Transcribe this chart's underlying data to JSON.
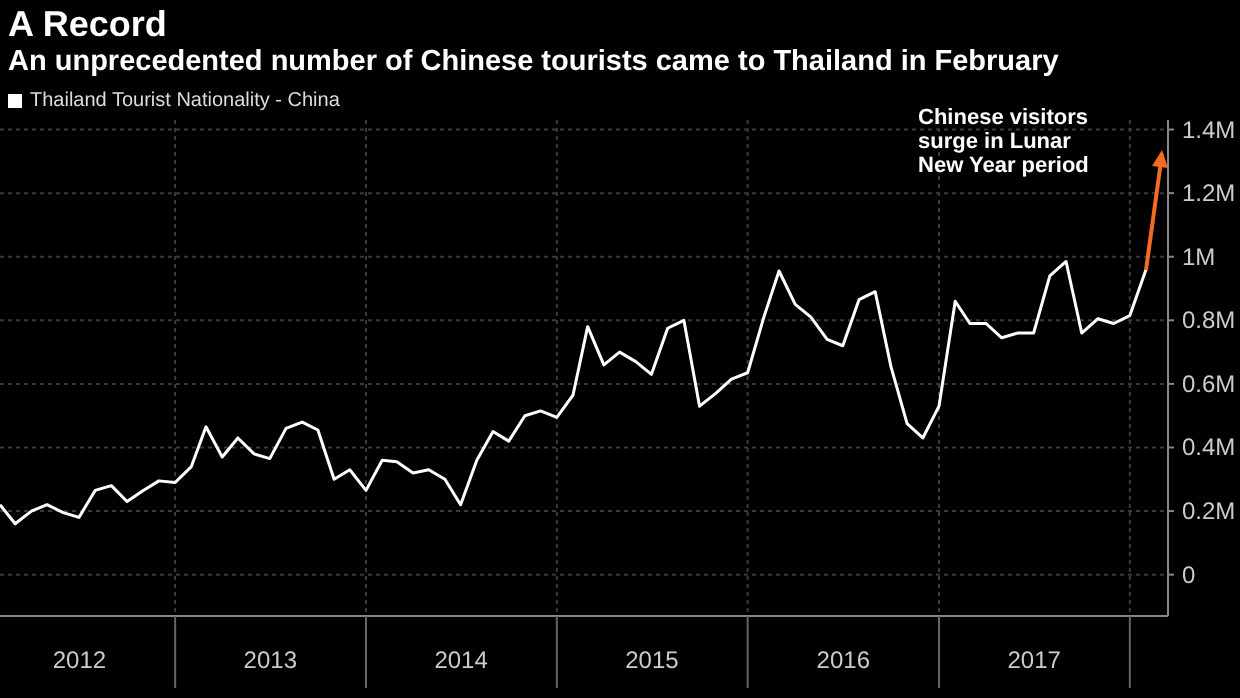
{
  "chart_data": {
    "type": "line",
    "title": "A Record",
    "subtitle": "An unprecedented number of Chinese tourists came to Thailand in February",
    "x": [
      "2012-02",
      "2012-03",
      "2012-04",
      "2012-05",
      "2012-06",
      "2012-07",
      "2012-08",
      "2012-09",
      "2012-10",
      "2012-11",
      "2012-12",
      "2013-01",
      "2013-02",
      "2013-03",
      "2013-04",
      "2013-05",
      "2013-06",
      "2013-07",
      "2013-08",
      "2013-09",
      "2013-10",
      "2013-11",
      "2013-12",
      "2014-01",
      "2014-02",
      "2014-03",
      "2014-04",
      "2014-05",
      "2014-06",
      "2014-07",
      "2014-08",
      "2014-09",
      "2014-10",
      "2014-11",
      "2014-12",
      "2015-01",
      "2015-02",
      "2015-03",
      "2015-04",
      "2015-05",
      "2015-06",
      "2015-07",
      "2015-08",
      "2015-09",
      "2015-10",
      "2015-11",
      "2015-12",
      "2016-01",
      "2016-02",
      "2016-03",
      "2016-04",
      "2016-05",
      "2016-06",
      "2016-07",
      "2016-08",
      "2016-09",
      "2016-10",
      "2016-11",
      "2016-12",
      "2017-01",
      "2017-02",
      "2017-03",
      "2017-04",
      "2017-05",
      "2017-06",
      "2017-07",
      "2017-08",
      "2017-09",
      "2017-10",
      "2017-11",
      "2017-12",
      "2018-01",
      "2018-02"
    ],
    "series": [
      {
        "name": "Thailand Tourist Nationality - China",
        "color": "#ffffff",
        "values": [
          0.22,
          0.16,
          0.2,
          0.22,
          0.195,
          0.18,
          0.265,
          0.28,
          0.23,
          0.265,
          0.295,
          0.29,
          0.34,
          0.465,
          0.37,
          0.43,
          0.38,
          0.365,
          0.46,
          0.48,
          0.455,
          0.3,
          0.33,
          0.265,
          0.36,
          0.355,
          0.32,
          0.33,
          0.3,
          0.22,
          0.36,
          0.45,
          0.42,
          0.5,
          0.515,
          0.495,
          0.565,
          0.78,
          0.66,
          0.7,
          0.67,
          0.63,
          0.775,
          0.8,
          0.53,
          0.57,
          0.615,
          0.635,
          0.81,
          0.955,
          0.85,
          0.81,
          0.74,
          0.72,
          0.865,
          0.89,
          0.655,
          0.475,
          0.43,
          0.53,
          0.86,
          0.79,
          0.79,
          0.745,
          0.76,
          0.76,
          0.94,
          0.985,
          0.76,
          0.805,
          0.79,
          0.815,
          0.96
        ]
      }
    ],
    "xlim": [
      "2012-02-01",
      "2018-03-15"
    ],
    "xticks": [
      {
        "value": "2013-01-01",
        "label": null
      },
      {
        "value": "2014-01-01",
        "label": null
      },
      {
        "value": "2015-01-01",
        "label": null
      },
      {
        "value": "2016-01-01",
        "label": null
      },
      {
        "value": "2017-01-01",
        "label": null
      },
      {
        "value": "2018-01-01",
        "label": null
      },
      {
        "value": "2012-07-02",
        "label": "2012"
      },
      {
        "value": "2013-07-02",
        "label": "2013"
      },
      {
        "value": "2014-07-02",
        "label": "2014"
      },
      {
        "value": "2015-07-02",
        "label": "2015"
      },
      {
        "value": "2016-07-02",
        "label": "2016"
      },
      {
        "value": "2017-07-02",
        "label": "2017"
      }
    ],
    "ylim": [
      -0.13,
      1.43
    ],
    "yticks": [
      {
        "value": 0,
        "label": "0"
      },
      {
        "value": 0.2,
        "label": "0.2M"
      },
      {
        "value": 0.4,
        "label": "0.4M"
      },
      {
        "value": 0.6,
        "label": "0.6M"
      },
      {
        "value": 0.8,
        "label": "0.8M"
      },
      {
        "value": 1,
        "label": "1M"
      },
      {
        "value": 1.2,
        "label": "1.2M"
      },
      {
        "value": 1.4,
        "label": "1.4M"
      }
    ],
    "annotations": [
      "Chinese visitors surge in Lunar New Year period"
    ],
    "grid": true,
    "legend": "top left",
    "marker": "none",
    "line_style": "solid"
  }
}
